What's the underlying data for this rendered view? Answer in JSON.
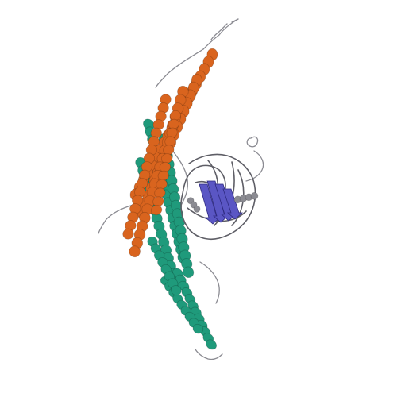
{
  "image": {
    "subject": "protein-ribbon-structure",
    "background_color": "#ffffff",
    "colors": {
      "orange_helices": "#d9641e",
      "teal_helices": "#1f9a7b",
      "blue_sheet_domain": "#5a56c4",
      "coil_gray": "#8b8b92",
      "outline_gray": "#5e5e66"
    }
  }
}
